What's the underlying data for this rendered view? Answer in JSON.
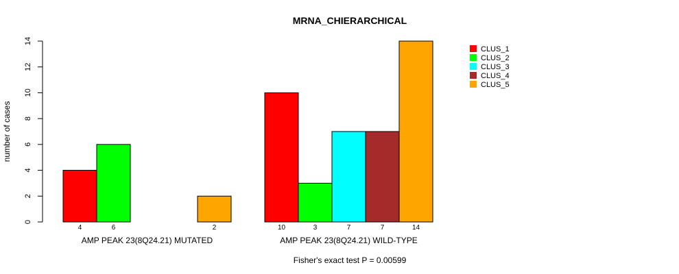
{
  "chart_data": {
    "type": "bar",
    "title": "MRNA_CHIERARCHICAL",
    "ylabel": "number of cases",
    "ylim": [
      0,
      14
    ],
    "yticks": [
      0,
      2,
      4,
      6,
      8,
      10,
      12,
      14
    ],
    "groups": [
      "AMP PEAK 23(8Q24.21) MUTATED",
      "AMP PEAK 23(8Q24.21) WILD-TYPE"
    ],
    "series": [
      {
        "name": "CLUS_1",
        "color": "#ff0000",
        "values": [
          4,
          10
        ]
      },
      {
        "name": "CLUS_2",
        "color": "#00ff00",
        "values": [
          6,
          3
        ]
      },
      {
        "name": "CLUS_3",
        "color": "#00ffff",
        "values": [
          0,
          7
        ]
      },
      {
        "name": "CLUS_4",
        "color": "#a52a2a",
        "values": [
          0,
          7
        ]
      },
      {
        "name": "CLUS_5",
        "color": "#ffa500",
        "values": [
          2,
          14
        ]
      }
    ],
    "count_labels": [
      [
        "4",
        "6",
        "",
        "",
        "2"
      ],
      [
        "10",
        "3",
        "7",
        "7",
        "14"
      ]
    ],
    "footnote": "Fisher's exact test P = 0.00599",
    "legend_position": "top-right"
  }
}
